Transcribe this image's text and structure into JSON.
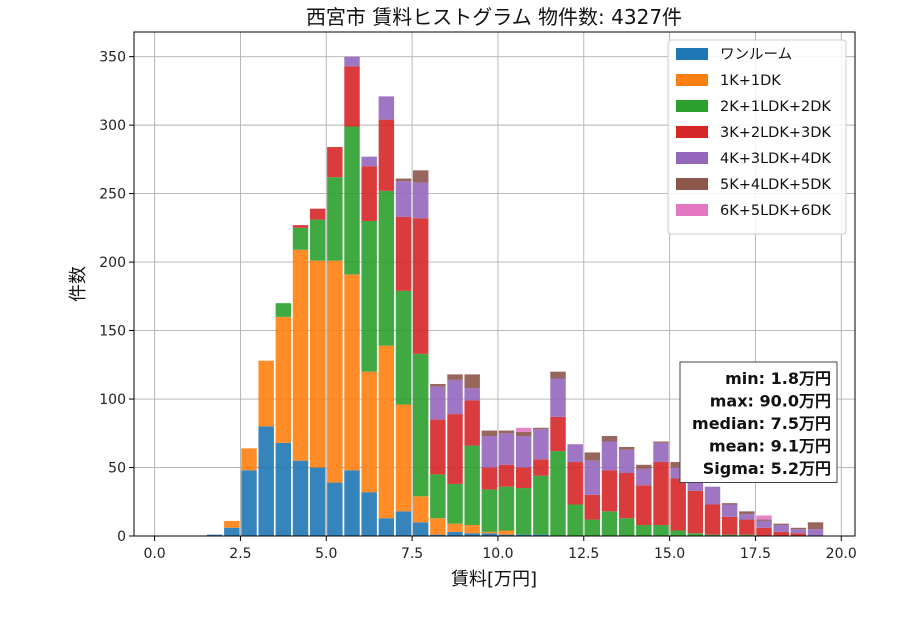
{
  "chart_data": {
    "type": "bar",
    "stacked": true,
    "title": "西宮市 賃料ヒストグラム 物件数: 4327件",
    "xlabel": "賃料[万円]",
    "ylabel": "件数",
    "xlim": [
      -0.6,
      20.4
    ],
    "ylim": [
      0,
      368
    ],
    "xticks": [
      "0.0",
      "2.5",
      "5.0",
      "7.5",
      "10.0",
      "12.5",
      "15.0",
      "17.5",
      "20.0"
    ],
    "xtick_values": [
      0,
      2.5,
      5,
      7.5,
      10,
      12.5,
      15,
      17.5,
      20
    ],
    "yticks": [
      "0",
      "50",
      "100",
      "150",
      "200",
      "250",
      "300",
      "350"
    ],
    "ytick_values": [
      0,
      50,
      100,
      150,
      200,
      250,
      300,
      350
    ],
    "grid": true,
    "legend_position": "top-right",
    "bin_width": 0.5,
    "bin_starts": [
      1.0,
      1.5,
      2.0,
      2.5,
      3.0,
      3.5,
      4.0,
      4.5,
      5.0,
      5.5,
      6.0,
      6.5,
      7.0,
      7.5,
      8.0,
      8.5,
      9.0,
      9.5,
      10.0,
      10.5,
      11.0,
      11.5,
      12.0,
      12.5,
      13.0,
      13.5,
      14.0,
      14.5,
      15.0,
      15.5,
      16.0,
      16.5,
      17.0,
      17.5,
      18.0,
      18.5,
      19.0,
      19.5
    ],
    "series": [
      {
        "name": "ワンルーム",
        "color": "#1f77b4",
        "values": [
          0,
          1,
          6,
          48,
          80,
          68,
          55,
          50,
          39,
          48,
          32,
          13,
          18,
          10,
          1,
          3,
          2,
          2,
          1,
          1,
          1,
          0,
          0,
          0,
          0,
          0,
          0,
          0,
          0,
          0,
          0,
          0,
          0,
          0,
          0,
          0,
          0,
          0
        ]
      },
      {
        "name": "1K+1DK",
        "color": "#ff7f0e",
        "values": [
          0,
          0,
          5,
          16,
          48,
          92,
          154,
          151,
          162,
          143,
          88,
          126,
          78,
          19,
          12,
          6,
          6,
          1,
          3,
          0,
          0,
          0,
          0,
          0,
          0,
          0,
          0,
          0,
          0,
          0,
          0,
          0,
          0,
          0,
          0,
          0,
          0,
          0
        ]
      },
      {
        "name": "2K+1LDK+2DK",
        "color": "#2ca02c",
        "values": [
          0,
          0,
          0,
          0,
          0,
          10,
          16,
          30,
          61,
          108,
          110,
          113,
          83,
          104,
          32,
          29,
          58,
          31,
          32,
          34,
          43,
          62,
          23,
          12,
          18,
          13,
          8,
          8,
          4,
          2,
          1,
          1,
          1,
          0,
          0,
          0,
          0,
          0
        ]
      },
      {
        "name": "3K+2LDK+3DK",
        "color": "#d62728",
        "values": [
          0,
          0,
          0,
          0,
          0,
          0,
          2,
          8,
          22,
          44,
          40,
          52,
          54,
          99,
          40,
          51,
          33,
          16,
          16,
          15,
          12,
          25,
          31,
          18,
          30,
          33,
          29,
          46,
          38,
          31,
          22,
          13,
          11,
          6,
          3,
          2,
          0,
          0
        ]
      },
      {
        "name": "4K+3LDK+4DK",
        "color": "#9467bd",
        "values": [
          0,
          0,
          0,
          0,
          0,
          0,
          0,
          0,
          0,
          7,
          7,
          17,
          26,
          26,
          24,
          25,
          9,
          23,
          23,
          23,
          22,
          28,
          13,
          25,
          21,
          17,
          12,
          14,
          8,
          12,
          13,
          9,
          4,
          5,
          5,
          3,
          5,
          0
        ]
      },
      {
        "name": "5K+4LDK+5DK",
        "color": "#8c564b",
        "values": [
          0,
          0,
          0,
          0,
          0,
          0,
          0,
          0,
          0,
          0,
          0,
          0,
          2,
          9,
          2,
          4,
          10,
          4,
          2,
          3,
          1,
          5,
          0,
          6,
          4,
          2,
          3,
          1,
          4,
          0,
          0,
          1,
          2,
          1,
          1,
          1,
          5,
          0
        ]
      },
      {
        "name": "6K+5LDK+6DK",
        "color": "#e377c2",
        "values": [
          0,
          0,
          0,
          0,
          0,
          0,
          0,
          0,
          0,
          0,
          0,
          0,
          0,
          0,
          0,
          0,
          0,
          0,
          0,
          3,
          0,
          0,
          0,
          0,
          0,
          0,
          0,
          0,
          0,
          0,
          0,
          0,
          0,
          3,
          0,
          0,
          0,
          0
        ]
      }
    ],
    "annotation_lines": [
      "min: 1.8万円",
      "max: 90.0万円",
      "median: 7.5万円",
      "mean: 9.1万円",
      "Sigma: 5.2万円"
    ]
  }
}
